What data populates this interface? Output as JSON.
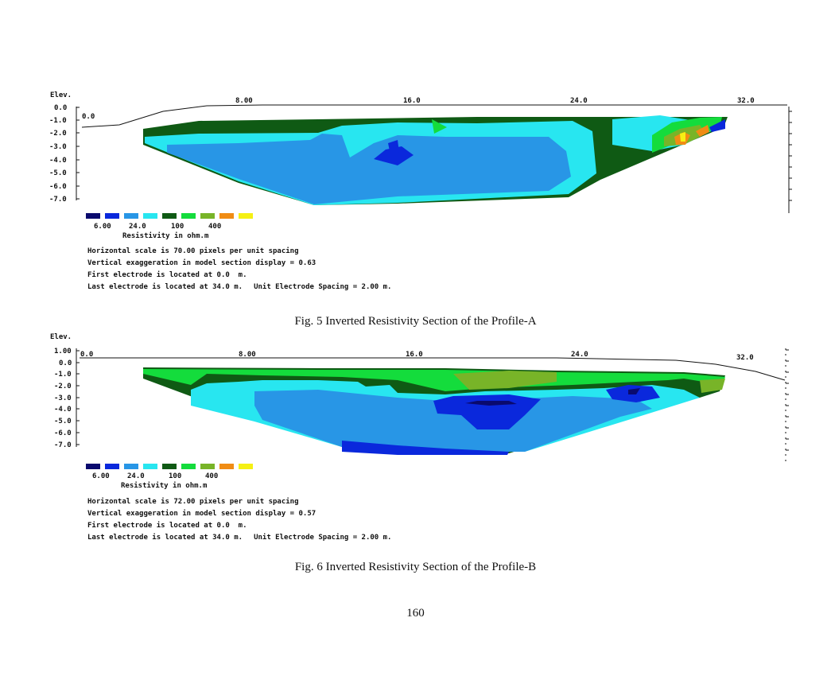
{
  "figures": [
    {
      "id": "profile-a",
      "elev_label": "Elev.",
      "x_ticks": [
        "8.00",
        "16.0",
        "24.0",
        "32.0"
      ],
      "start_label": "0.0",
      "y_ticks": [
        "0.0",
        "-1.0",
        "-2.0",
        "-3.0",
        "-4.0",
        "-5.0",
        "-6.0",
        "-7.0"
      ],
      "legend_values": [
        "6.00",
        "24.0",
        "100",
        "400"
      ],
      "legend_title": "Resistivity in ohm.m",
      "info": {
        "horizontal_scale": "Horizontal scale is 70.00 pixels per unit spacing",
        "vertical_exaggeration": "Vertical exaggeration in model section display = 0.63",
        "first_electrode": "First electrode is located at 0.0  m.",
        "last_electrode": "Last electrode is located at 34.0 m.",
        "unit_spacing": "Unit Electrode Spacing = 2.00 m."
      },
      "caption": "Fig. 5 Inverted Resistivity Section of the Profile-A"
    },
    {
      "id": "profile-b",
      "elev_label": "Elev.",
      "x_ticks": [
        "8.00",
        "16.0",
        "24.0",
        "32.0"
      ],
      "start_label": "0.0",
      "y_ticks": [
        "1.00",
        "0.0",
        "-1.0",
        "-2.0",
        "-3.0",
        "-4.0",
        "-5.0",
        "-6.0",
        "-7.0"
      ],
      "legend_values": [
        "6.00",
        "24.0",
        "100",
        "400"
      ],
      "legend_title": "Resistivity in ohm.m",
      "info": {
        "horizontal_scale": "Horizontal scale is 72.00 pixels per unit spacing",
        "vertical_exaggeration": "Vertical exaggeration in model section display = 0.57",
        "first_electrode": "First electrode is located at 0.0  m.",
        "last_electrode": "Last electrode is located at 34.0 m.",
        "unit_spacing": "Unit Electrode Spacing = 2.00 m."
      },
      "caption": "Fig. 6 Inverted Resistivity Section of the Profile-B"
    }
  ],
  "legend_colors": [
    "#0a0a6e",
    "#0a28dc",
    "#2896e6",
    "#28e6f0",
    "#0f5a14",
    "#14dc3c",
    "#78b428",
    "#f08c14",
    "#f5f014"
  ],
  "page_number": "160"
}
